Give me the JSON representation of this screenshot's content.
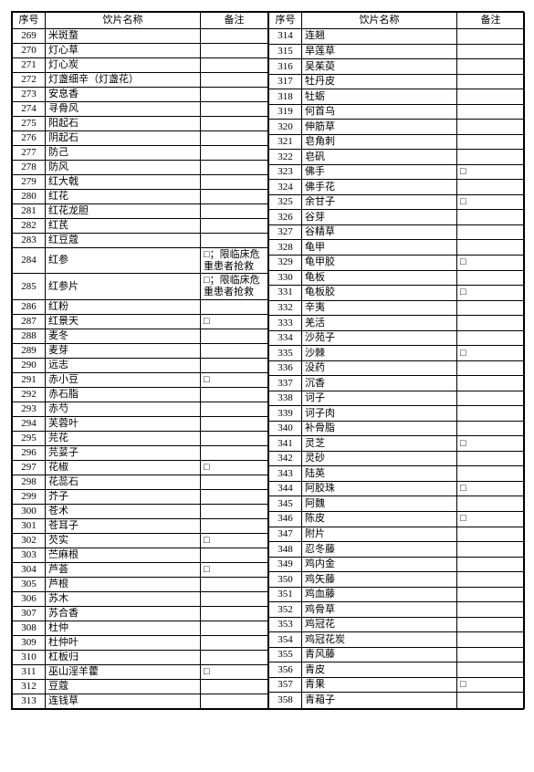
{
  "headers": {
    "idx": "序号",
    "name": "饮片名称",
    "note": "备注"
  },
  "note_clinical": "□；限临床危重患者抢救",
  "note_box": "□",
  "colors": {
    "border": "#000000",
    "background": "#ffffff",
    "text": "#000000"
  },
  "font_size_pt": 8,
  "columns": {
    "idx_width": 36,
    "name_width": 170,
    "note_width": 74
  },
  "left": [
    {
      "idx": "269",
      "name": "米斑蝥",
      "note": ""
    },
    {
      "idx": "270",
      "name": "灯心草",
      "note": ""
    },
    {
      "idx": "271",
      "name": "灯心炭",
      "note": ""
    },
    {
      "idx": "272",
      "name": "灯盏细辛（灯盏花）",
      "note": ""
    },
    {
      "idx": "273",
      "name": "安息香",
      "note": ""
    },
    {
      "idx": "274",
      "name": "寻骨风",
      "note": ""
    },
    {
      "idx": "275",
      "name": "阳起石",
      "note": ""
    },
    {
      "idx": "276",
      "name": "阴起石",
      "note": ""
    },
    {
      "idx": "277",
      "name": "防己",
      "note": ""
    },
    {
      "idx": "278",
      "name": "防风",
      "note": ""
    },
    {
      "idx": "279",
      "name": "红大戟",
      "note": ""
    },
    {
      "idx": "280",
      "name": "红花",
      "note": ""
    },
    {
      "idx": "281",
      "name": "红花龙胆",
      "note": ""
    },
    {
      "idx": "282",
      "name": "红芪",
      "note": ""
    },
    {
      "idx": "283",
      "name": "红豆蔻",
      "note": ""
    },
    {
      "idx": "284",
      "name": "红参",
      "note": "clinical",
      "tall": true
    },
    {
      "idx": "285",
      "name": "红参片",
      "note": "clinical",
      "tall": true
    },
    {
      "idx": "286",
      "name": "红粉",
      "note": ""
    },
    {
      "idx": "287",
      "name": "红景天",
      "note": "box"
    },
    {
      "idx": "288",
      "name": "麦冬",
      "note": ""
    },
    {
      "idx": "289",
      "name": "麦芽",
      "note": ""
    },
    {
      "idx": "290",
      "name": "远志",
      "note": ""
    },
    {
      "idx": "291",
      "name": "赤小豆",
      "note": "box"
    },
    {
      "idx": "292",
      "name": "赤石脂",
      "note": ""
    },
    {
      "idx": "293",
      "name": "赤芍",
      "note": ""
    },
    {
      "idx": "294",
      "name": "芙蓉叶",
      "note": ""
    },
    {
      "idx": "295",
      "name": "芫花",
      "note": ""
    },
    {
      "idx": "296",
      "name": "芫荽子",
      "note": ""
    },
    {
      "idx": "297",
      "name": "花椒",
      "note": "box"
    },
    {
      "idx": "298",
      "name": "花蕊石",
      "note": ""
    },
    {
      "idx": "299",
      "name": "芥子",
      "note": ""
    },
    {
      "idx": "300",
      "name": "苍术",
      "note": ""
    },
    {
      "idx": "301",
      "name": "苍耳子",
      "note": ""
    },
    {
      "idx": "302",
      "name": "芡实",
      "note": "box"
    },
    {
      "idx": "303",
      "name": "苎麻根",
      "note": ""
    },
    {
      "idx": "304",
      "name": "芦荟",
      "note": "box"
    },
    {
      "idx": "305",
      "name": "芦根",
      "note": ""
    },
    {
      "idx": "306",
      "name": "苏木",
      "note": ""
    },
    {
      "idx": "307",
      "name": "苏合香",
      "note": ""
    },
    {
      "idx": "308",
      "name": "杜仲",
      "note": ""
    },
    {
      "idx": "309",
      "name": "杜仲叶",
      "note": ""
    },
    {
      "idx": "310",
      "name": "杠板归",
      "note": ""
    },
    {
      "idx": "311",
      "name": "巫山淫羊藿",
      "note": "box"
    },
    {
      "idx": "312",
      "name": "豆蔻",
      "note": ""
    },
    {
      "idx": "313",
      "name": "连钱草",
      "note": ""
    }
  ],
  "right": [
    {
      "idx": "314",
      "name": "连翘",
      "note": ""
    },
    {
      "idx": "315",
      "name": "旱莲草",
      "note": ""
    },
    {
      "idx": "316",
      "name": "吴茱萸",
      "note": ""
    },
    {
      "idx": "317",
      "name": "牡丹皮",
      "note": ""
    },
    {
      "idx": "318",
      "name": "牡蛎",
      "note": ""
    },
    {
      "idx": "319",
      "name": "何首乌",
      "note": ""
    },
    {
      "idx": "320",
      "name": "伸筋草",
      "note": ""
    },
    {
      "idx": "321",
      "name": "皂角刺",
      "note": ""
    },
    {
      "idx": "322",
      "name": "皂矾",
      "note": ""
    },
    {
      "idx": "323",
      "name": "佛手",
      "note": "box"
    },
    {
      "idx": "324",
      "name": "佛手花",
      "note": ""
    },
    {
      "idx": "325",
      "name": "余甘子",
      "note": "box"
    },
    {
      "idx": "326",
      "name": "谷芽",
      "note": ""
    },
    {
      "idx": "327",
      "name": "谷精草",
      "note": ""
    },
    {
      "idx": "328",
      "name": "龟甲",
      "note": ""
    },
    {
      "idx": "329",
      "name": "龟甲胶",
      "note": "box",
      "tall": true
    },
    {
      "idx": "330",
      "name": "龟板",
      "note": "",
      "tall": true
    },
    {
      "idx": "331",
      "name": "龟板胶",
      "note": "box"
    },
    {
      "idx": "332",
      "name": "辛夷",
      "note": ""
    },
    {
      "idx": "333",
      "name": "羌活",
      "note": ""
    },
    {
      "idx": "334",
      "name": "沙苑子",
      "note": ""
    },
    {
      "idx": "335",
      "name": "沙棘",
      "note": "box"
    },
    {
      "idx": "336",
      "name": "没药",
      "note": ""
    },
    {
      "idx": "337",
      "name": "沉香",
      "note": ""
    },
    {
      "idx": "338",
      "name": "诃子",
      "note": ""
    },
    {
      "idx": "339",
      "name": "诃子肉",
      "note": ""
    },
    {
      "idx": "340",
      "name": "补骨脂",
      "note": ""
    },
    {
      "idx": "341",
      "name": "灵芝",
      "note": "box"
    },
    {
      "idx": "342",
      "name": "灵砂",
      "note": ""
    },
    {
      "idx": "343",
      "name": "陆英",
      "note": ""
    },
    {
      "idx": "344",
      "name": "阿胶珠",
      "note": "box"
    },
    {
      "idx": "345",
      "name": "阿魏",
      "note": ""
    },
    {
      "idx": "346",
      "name": "陈皮",
      "note": "box"
    },
    {
      "idx": "347",
      "name": "附片",
      "note": ""
    },
    {
      "idx": "348",
      "name": "忍冬藤",
      "note": ""
    },
    {
      "idx": "349",
      "name": "鸡内金",
      "note": ""
    },
    {
      "idx": "350",
      "name": "鸡矢藤",
      "note": ""
    },
    {
      "idx": "351",
      "name": "鸡血藤",
      "note": ""
    },
    {
      "idx": "352",
      "name": "鸡骨草",
      "note": ""
    },
    {
      "idx": "353",
      "name": "鸡冠花",
      "note": ""
    },
    {
      "idx": "354",
      "name": "鸡冠花炭",
      "note": ""
    },
    {
      "idx": "355",
      "name": "青风藤",
      "note": ""
    },
    {
      "idx": "356",
      "name": "青皮",
      "note": ""
    },
    {
      "idx": "357",
      "name": "青果",
      "note": "box"
    },
    {
      "idx": "358",
      "name": "青葙子",
      "note": ""
    }
  ]
}
